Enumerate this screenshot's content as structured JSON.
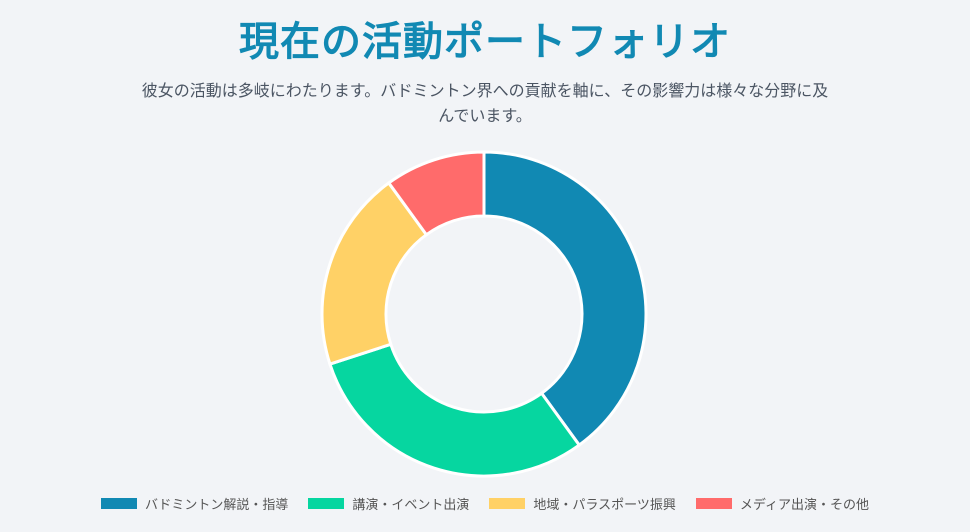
{
  "header": {
    "title": "現在の活動ポートフォリオ",
    "subtitle": "彼女の活動は多岐にわたります。バドミントン界への貢献を軸に、その影響力は様々な分野に及んでいます。"
  },
  "chart_data": {
    "type": "pie",
    "title": "",
    "legend_position": "bottom",
    "categories": [
      "バドミントン解説・指導",
      "講演・イベント出演",
      "地域・パラスポーツ振興",
      "メディア出演・その他"
    ],
    "values": [
      40,
      30,
      20,
      10
    ],
    "colors": [
      "#1189b3",
      "#06d6a0",
      "#ffd166",
      "#ff6b6b"
    ]
  }
}
